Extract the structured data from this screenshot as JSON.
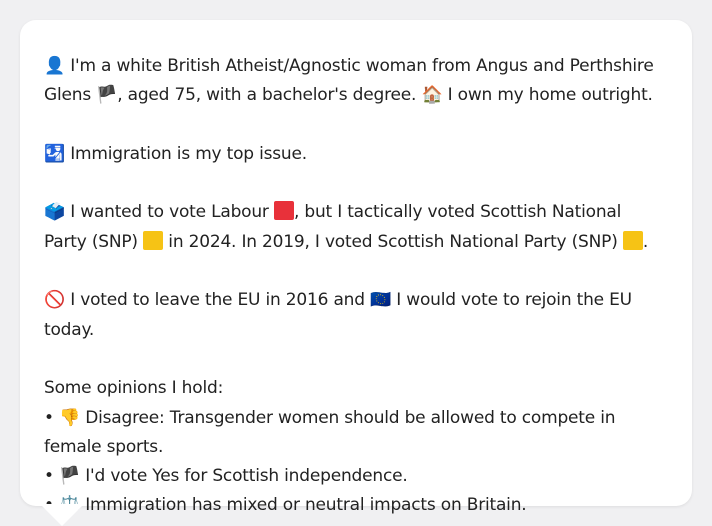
{
  "card": {
    "profile": {
      "icon": "👤",
      "part1": "I'm a white British Atheist/Agnostic woman from Angus and Perthshire Glens",
      "flag": "🏴",
      "part2": ", aged 75, with a bachelor's degree.",
      "home_icon": "🏠",
      "part3": "I own my home outright."
    },
    "issue": {
      "icon": "🛂",
      "text": "Immigration is my top issue."
    },
    "vote": {
      "icon": "🗳️",
      "part1": "I wanted to vote Labour",
      "part2": ", but I tactically voted Scottish National Party (SNP)",
      "part3": "in 2024. In 2019, I voted Scottish National Party (SNP)",
      "part4": "."
    },
    "eu": {
      "icon": "🚫",
      "part1": "I voted to leave the EU in 2016 and",
      "eu_icon": "🇪🇺",
      "part2": "I would vote to rejoin the EU today."
    },
    "opinions": {
      "heading": "Some opinions I hold:",
      "items": [
        {
          "bullet": "•",
          "icon": "👎",
          "text": "Disagree: Transgender women should be allowed to compete in female sports."
        },
        {
          "bullet": "•",
          "icon": "🏴",
          "text": "I'd vote Yes for Scottish independence."
        },
        {
          "bullet": "•",
          "icon": "⚖️",
          "text": "Immigration has mixed or neutral impacts on Britain."
        }
      ]
    }
  },
  "colors": {
    "labour": "#e8313a",
    "snp": "#f6c315",
    "card_bg": "#ffffff",
    "page_bg": "#f0f0f2"
  }
}
